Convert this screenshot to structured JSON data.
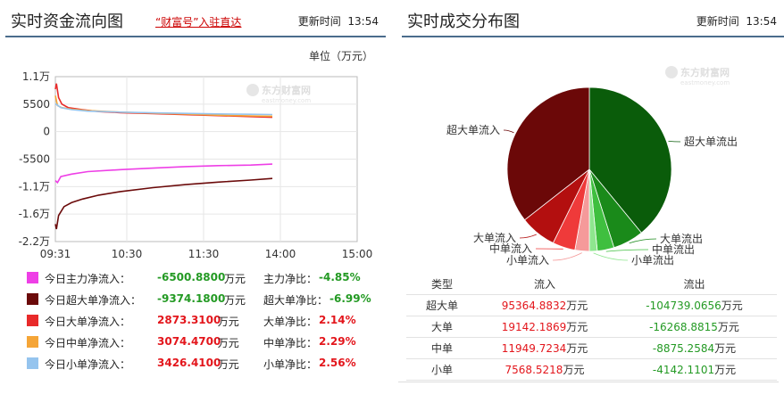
{
  "left_panel": {
    "title": "实时资金流向图",
    "promo_link": "“财富号”入驻直达",
    "update_label": "更新时间",
    "update_time": "13:54",
    "unit_label": "单位（万元）",
    "watermark_cn": "东方财富网",
    "watermark_en": "eastmoney.com"
  },
  "right_panel": {
    "title": "实时成交分布图",
    "update_label": "更新时间",
    "update_time": "13:54",
    "watermark_cn": "东方财富网",
    "watermark_en": "eastmoney.com"
  },
  "colors": {
    "main": "#ee3fe6",
    "super_large": "#6b0a0a",
    "large": "#e82a2a",
    "medium": "#f5a537",
    "small": "#95c4ee",
    "positive": "#e3161c",
    "negative": "#249a24"
  },
  "legend": [
    {
      "name": "今日主力净流入：",
      "value": "-6500.8800",
      "unit": "万元",
      "ratio_label": "主力净比：",
      "ratio": "-4.85%",
      "color": "#ee3fe6",
      "sign": "neg"
    },
    {
      "name": "今日超大单净流入：",
      "value": "-9374.1800",
      "unit": "万元",
      "ratio_label": "超大单净比：",
      "ratio": "-6.99%",
      "color": "#6b0a0a",
      "sign": "neg"
    },
    {
      "name": "今日大单净流入：",
      "value": "2873.3100",
      "unit": "万元",
      "ratio_label": "大单净比：",
      "ratio": "2.14%",
      "color": "#e82a2a",
      "sign": "pos"
    },
    {
      "name": "今日中单净流入：",
      "value": "3074.4700",
      "unit": "万元",
      "ratio_label": "中单净比：",
      "ratio": "2.29%",
      "color": "#f5a537",
      "sign": "pos"
    },
    {
      "name": "今日小单净流入：",
      "value": "3426.4100",
      "unit": "万元",
      "ratio_label": "小单净比：",
      "ratio": "2.56%",
      "color": "#95c4ee",
      "sign": "pos"
    }
  ],
  "flow_table": {
    "headers": [
      "类型",
      "流入",
      "流出"
    ],
    "unit": "万元",
    "rows": [
      {
        "type": "超大单",
        "in": "95364.8832",
        "out": "-104739.0656"
      },
      {
        "type": "大单",
        "in": "19142.1869",
        "out": "-16268.8815"
      },
      {
        "type": "中单",
        "in": "11949.7234",
        "out": "-8875.2584"
      },
      {
        "type": "小单",
        "in": "7568.5218",
        "out": "-4142.1101"
      }
    ]
  },
  "chart_data": [
    {
      "type": "line",
      "x_ticks": [
        "09:31",
        "10:30",
        "11:30",
        "14:00",
        "15:00"
      ],
      "y_ticks": [
        "1.1万",
        "5500",
        "0",
        "-5500",
        "-1.1万",
        "-1.6万",
        "-2.2万"
      ],
      "ylim": [
        -22000,
        11000
      ],
      "grid": true,
      "series": [
        {
          "name": "主力",
          "color": "#ee3fe6",
          "points": [
            [
              0,
              -9800
            ],
            [
              2,
              -10200
            ],
            [
              5,
              -9000
            ],
            [
              15,
              -8500
            ],
            [
              30,
              -8000
            ],
            [
              60,
              -7600
            ],
            [
              90,
              -7300
            ],
            [
              120,
              -7000
            ],
            [
              150,
              -6800
            ],
            [
              180,
              -6700
            ],
            [
              200,
              -6500
            ]
          ]
        },
        {
          "name": "超大单",
          "color": "#6b0a0a",
          "points": [
            [
              0,
              -18500
            ],
            [
              1,
              -19500
            ],
            [
              3,
              -16800
            ],
            [
              8,
              -15000
            ],
            [
              15,
              -14200
            ],
            [
              25,
              -13500
            ],
            [
              40,
              -12700
            ],
            [
              60,
              -12000
            ],
            [
              90,
              -11200
            ],
            [
              120,
              -10600
            ],
            [
              150,
              -10100
            ],
            [
              180,
              -9700
            ],
            [
              200,
              -9374
            ]
          ]
        },
        {
          "name": "大单",
          "color": "#e82a2a",
          "points": [
            [
              0,
              8500
            ],
            [
              1,
              9600
            ],
            [
              3,
              6800
            ],
            [
              6,
              5500
            ],
            [
              12,
              4800
            ],
            [
              25,
              4400
            ],
            [
              40,
              4000
            ],
            [
              60,
              3800
            ],
            [
              90,
              3600
            ],
            [
              120,
              3400
            ],
            [
              150,
              3200
            ],
            [
              180,
              3000
            ],
            [
              200,
              2873
            ]
          ]
        },
        {
          "name": "中单",
          "color": "#f5a537",
          "points": [
            [
              0,
              7200
            ],
            [
              2,
              5200
            ],
            [
              6,
              4800
            ],
            [
              15,
              4500
            ],
            [
              30,
              4200
            ],
            [
              60,
              3900
            ],
            [
              90,
              3700
            ],
            [
              120,
              3500
            ],
            [
              150,
              3300
            ],
            [
              180,
              3150
            ],
            [
              200,
              3074
            ]
          ]
        },
        {
          "name": "小单",
          "color": "#95c4ee",
          "points": [
            [
              0,
              5600
            ],
            [
              5,
              4800
            ],
            [
              15,
              4400
            ],
            [
              30,
              4100
            ],
            [
              60,
              3900
            ],
            [
              90,
              3750
            ],
            [
              120,
              3650
            ],
            [
              150,
              3550
            ],
            [
              180,
              3480
            ],
            [
              200,
              3426
            ]
          ]
        }
      ]
    },
    {
      "type": "pie",
      "slices": [
        {
          "label": "超大单流出",
          "value": 104739.0656,
          "color": "#0a5c0a"
        },
        {
          "label": "大单流出",
          "value": 16268.8815,
          "color": "#1a8a1a"
        },
        {
          "label": "中单流出",
          "value": 8875.2584,
          "color": "#3fbf3f"
        },
        {
          "label": "小单流出",
          "value": 4142.1101,
          "color": "#8ee68e"
        },
        {
          "label": "小单流入",
          "value": 7568.5218,
          "color": "#f59a9a"
        },
        {
          "label": "中单流入",
          "value": 11949.7234,
          "color": "#ef3a3a"
        },
        {
          "label": "大单流入",
          "value": 19142.1869,
          "color": "#b30f0f"
        },
        {
          "label": "超大单流入",
          "value": 95364.8832,
          "color": "#6b0808"
        }
      ]
    }
  ]
}
